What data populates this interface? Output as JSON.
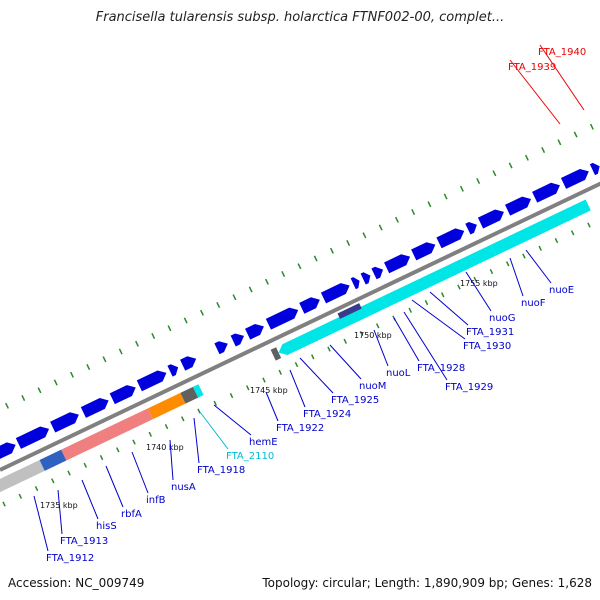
{
  "title": "Francisella tularensis subsp. holarctica FTNF002-00, complet...",
  "footer": {
    "accession": "Accession: NC_009749",
    "summary": "Topology: circular; Length: 1,890,909 bp; Genes: 1,628"
  },
  "colors": {
    "backbone": "#808080",
    "cds_forward": "#0000dd",
    "cds_forward_dark": "#000080",
    "cds_reverse_cyan": "#00e5e5",
    "cds_reverse_pink": "#f08080",
    "cds_reverse_orange": "#ff8c00",
    "cds_reverse_gray": "#c0c0c0",
    "cds_red": "#ff0000",
    "tick_green": "#2a8a2a",
    "label_blue": "#0000cc",
    "label_cyan": "#00bcd4",
    "label_red": "#ee0000"
  },
  "scale_ticks": [
    "1735 kbp",
    "1740 kbp",
    "1745 kbp",
    "1750 kbp",
    "1755 kbp"
  ],
  "gene_labels": [
    {
      "name": "FTA_1912",
      "color": "blue"
    },
    {
      "name": "FTA_1913",
      "color": "blue"
    },
    {
      "name": "hisS",
      "color": "blue"
    },
    {
      "name": "rbfA",
      "color": "blue"
    },
    {
      "name": "infB",
      "color": "blue"
    },
    {
      "name": "nusA",
      "color": "blue"
    },
    {
      "name": "FTA_1918",
      "color": "blue"
    },
    {
      "name": "FTA_2110",
      "color": "cyan"
    },
    {
      "name": "hemE",
      "color": "blue"
    },
    {
      "name": "FTA_1922",
      "color": "blue"
    },
    {
      "name": "FTA_1924",
      "color": "blue"
    },
    {
      "name": "FTA_1925",
      "color": "blue"
    },
    {
      "name": "nuoM",
      "color": "blue"
    },
    {
      "name": "nuoL",
      "color": "blue"
    },
    {
      "name": "FTA_1928",
      "color": "blue"
    },
    {
      "name": "FTA_1929",
      "color": "blue"
    },
    {
      "name": "FTA_1930",
      "color": "blue"
    },
    {
      "name": "FTA_1931",
      "color": "blue"
    },
    {
      "name": "nuoG",
      "color": "blue"
    },
    {
      "name": "nuoF",
      "color": "blue"
    },
    {
      "name": "nuoE",
      "color": "blue"
    },
    {
      "name": "FTA_1939",
      "color": "red"
    },
    {
      "name": "FTA_1940",
      "color": "red"
    }
  ]
}
